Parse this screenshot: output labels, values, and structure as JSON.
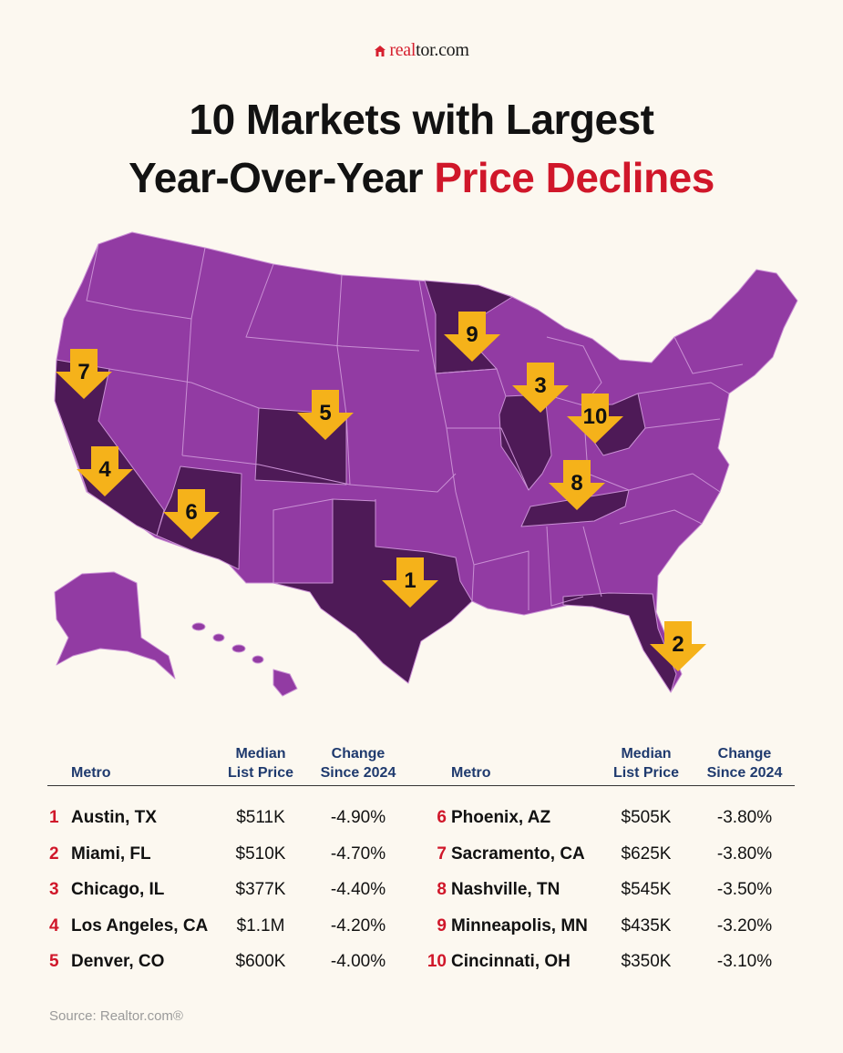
{
  "brand": {
    "name_part1": "real",
    "name_part2": "tor.com"
  },
  "title": {
    "line1": "10 Markets with Largest",
    "line2_dark": "Year-Over-Year",
    "line2_accent": "Price Declines"
  },
  "colors": {
    "state_light": "#923ba3",
    "state_dark": "#4e1a57",
    "marker": "#f5b21a",
    "accent": "#d0172a",
    "header": "#1f3a6e"
  },
  "markers": [
    "1",
    "2",
    "3",
    "4",
    "5",
    "6",
    "7",
    "8",
    "9",
    "10"
  ],
  "table": {
    "headers": {
      "metro": "Metro",
      "price_l1": "Median",
      "price_l2": "List Price",
      "change_l1": "Change",
      "change_l2": "Since 2024"
    },
    "left": [
      {
        "rank": "1",
        "metro": "Austin, TX",
        "price": "$511K",
        "change": "-4.90%"
      },
      {
        "rank": "2",
        "metro": "Miami, FL",
        "price": "$510K",
        "change": "-4.70%"
      },
      {
        "rank": "3",
        "metro": "Chicago, IL",
        "price": "$377K",
        "change": "-4.40%"
      },
      {
        "rank": "4",
        "metro": "Los Angeles, CA",
        "price": "$1.1M",
        "change": "-4.20%"
      },
      {
        "rank": "5",
        "metro": "Denver, CO",
        "price": "$600K",
        "change": "-4.00%"
      }
    ],
    "right": [
      {
        "rank": "6",
        "metro": "Phoenix, AZ",
        "price": "$505K",
        "change": "-3.80%"
      },
      {
        "rank": "7",
        "metro": "Sacramento, CA",
        "price": "$625K",
        "change": "-3.80%"
      },
      {
        "rank": "8",
        "metro": "Nashville, TN",
        "price": "$545K",
        "change": "-3.50%"
      },
      {
        "rank": "9",
        "metro": "Minneapolis, MN",
        "price": "$435K",
        "change": "-3.20%"
      },
      {
        "rank": "10",
        "metro": "Cincinnati, OH",
        "price": "$350K",
        "change": "-3.10%"
      }
    ]
  },
  "source": {
    "label": "Source:",
    "value": "Realtor.com®"
  }
}
